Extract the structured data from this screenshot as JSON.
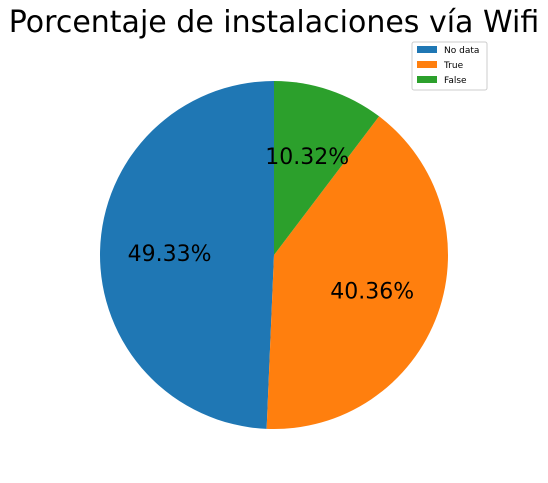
{
  "chart_data": {
    "type": "pie",
    "title": "Porcentaje de instalaciones vía Wifi",
    "categories": [
      "No data",
      "True",
      "False"
    ],
    "values": [
      49.33,
      40.36,
      10.32
    ],
    "labels": [
      "49.33%",
      "40.36%",
      "10.32%"
    ],
    "colors": [
      "#1f77b4",
      "#ff7f0e",
      "#2ca02c"
    ],
    "start_angle_deg": 90,
    "direction": "counterclockwise",
    "legend_position": "upper-right"
  }
}
